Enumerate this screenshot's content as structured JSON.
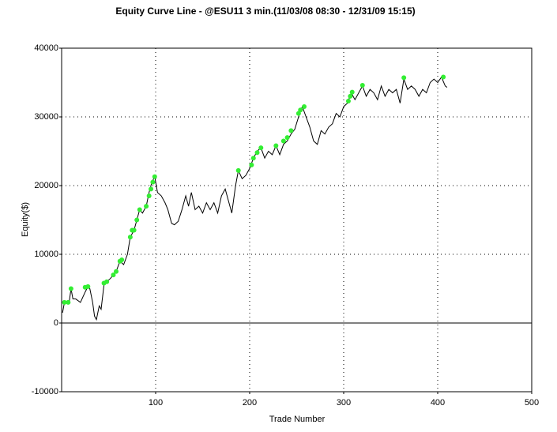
{
  "chart_data": {
    "type": "line",
    "title": "Equity Curve Line - @ESU11 3 min.(11/03/08 08:30 - 12/31/09 15:15)",
    "x_label": "Trade Number",
    "y_label": "Equity($)",
    "xlim": [
      0,
      500
    ],
    "xticks": [
      100,
      200,
      300,
      400,
      500
    ],
    "ylim": [
      -10000,
      40000
    ],
    "yticks": [
      -10000,
      0,
      10000,
      20000,
      30000,
      40000
    ],
    "grid": true,
    "series": [
      {
        "color": "#000000",
        "x": [
          1,
          3,
          8,
          10,
          12,
          15,
          20,
          25,
          28,
          30,
          33,
          35,
          37,
          40,
          42,
          45,
          48,
          52,
          55,
          58,
          62,
          66,
          70,
          73,
          77,
          80,
          83,
          86,
          90,
          93,
          96,
          99,
          102,
          106,
          110,
          113,
          117,
          120,
          124,
          128,
          132,
          135,
          138,
          142,
          146,
          150,
          154,
          158,
          162,
          166,
          170,
          174,
          178,
          181,
          185,
          188,
          192,
          196,
          200,
          204,
          208,
          212,
          216,
          220,
          224,
          228,
          232,
          236,
          240,
          244,
          248,
          252,
          256,
          260,
          264,
          268,
          272,
          276,
          280,
          284,
          288,
          292,
          296,
          300,
          304,
          308,
          312,
          316,
          320,
          324,
          328,
          332,
          336,
          340,
          344,
          348,
          352,
          356,
          360,
          364,
          368,
          372,
          376,
          380,
          384,
          388,
          392,
          396,
          400,
          404,
          408,
          410
        ],
        "values": [
          1500,
          3000,
          3000,
          5000,
          3500,
          3500,
          3000,
          4500,
          5300,
          5000,
          3000,
          1000,
          500,
          2500,
          2000,
          5500,
          6000,
          6500,
          7000,
          7500,
          9000,
          8500,
          10000,
          12500,
          13500,
          15000,
          16500,
          16000,
          17000,
          19000,
          20500,
          21300,
          19000,
          18500,
          17500,
          16500,
          14500,
          14300,
          14800,
          16500,
          18500,
          17000,
          19000,
          16500,
          17000,
          16000,
          17500,
          16500,
          17500,
          16000,
          18500,
          19500,
          17500,
          16000,
          20000,
          22200,
          21000,
          21500,
          22500,
          24000,
          25000,
          25500,
          24000,
          25000,
          24500,
          25800,
          24500,
          26000,
          26500,
          27500,
          28200,
          30000,
          31500,
          30000,
          28500,
          26500,
          26000,
          28000,
          27500,
          28500,
          29000,
          30500,
          30000,
          31500,
          32000,
          33500,
          32500,
          33500,
          34500,
          33000,
          34000,
          33500,
          32500,
          34500,
          33000,
          34000,
          33500,
          34000,
          32000,
          35500,
          34000,
          34500,
          34000,
          33000,
          34000,
          33500,
          35000,
          35500,
          35000,
          35800,
          34500,
          34300
        ]
      },
      {
        "color": "#33ee33",
        "marker": "dot",
        "x": [
          3,
          7,
          10,
          25,
          28,
          45,
          48,
          55,
          58,
          62,
          64,
          73,
          75,
          77,
          80,
          83,
          90,
          93,
          95,
          97,
          99,
          188,
          202,
          204,
          208,
          212,
          228,
          236,
          240,
          244,
          252,
          254,
          258,
          305,
          307,
          309,
          320,
          364,
          406
        ],
        "values": [
          3000,
          3000,
          5000,
          5200,
          5300,
          5800,
          6000,
          7000,
          7500,
          9000,
          9200,
          12500,
          13500,
          13500,
          15000,
          16500,
          17000,
          18500,
          19500,
          20500,
          21300,
          22200,
          23000,
          24000,
          24800,
          25500,
          25800,
          26500,
          27000,
          28000,
          30500,
          31000,
          31500,
          32300,
          33000,
          33600,
          34600,
          35700,
          35800
        ]
      }
    ]
  }
}
